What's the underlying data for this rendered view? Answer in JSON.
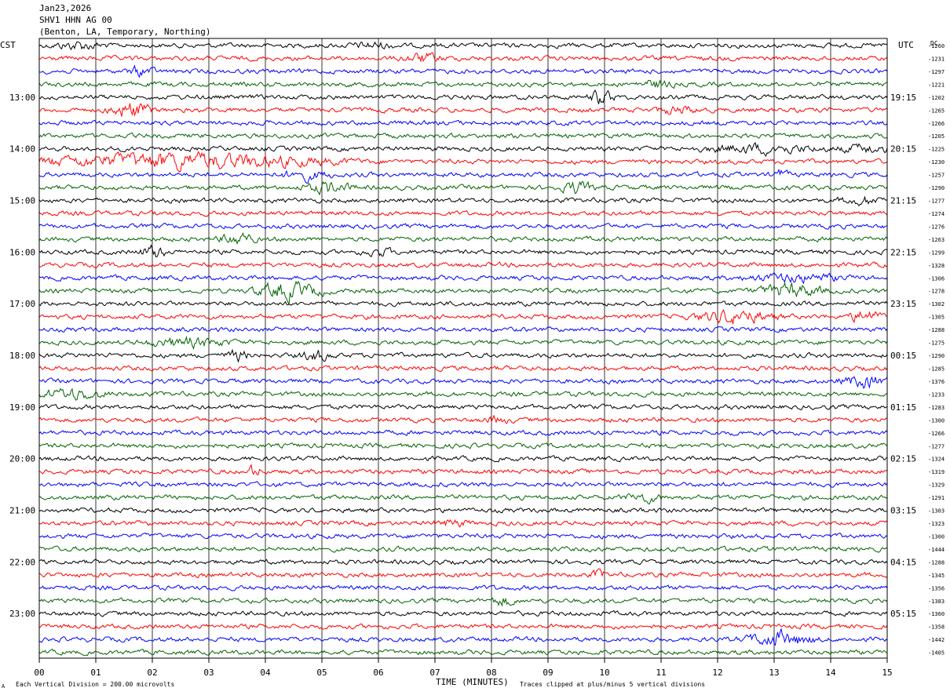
{
  "header": {
    "date": "Jan23,2026",
    "station": "SHV1 HHN AG 00",
    "location": "(Benton, LA, Temporary, Northing)"
  },
  "chart_data": {
    "type": "line",
    "title": "SHV1 HHN AG 00",
    "left_axis_label": "CST",
    "right_axis_label": "UTC",
    "dc_label": "DC",
    "xlabel": "TIME (MINUTES)",
    "x_ticks": [
      "00",
      "01",
      "02",
      "03",
      "04",
      "05",
      "06",
      "07",
      "08",
      "09",
      "10",
      "11",
      "12",
      "13",
      "14",
      "15"
    ],
    "xlim": [
      0,
      15
    ],
    "left_hour_labels": [
      "13:00",
      "14:00",
      "15:00",
      "16:00",
      "17:00",
      "18:00",
      "19:00",
      "20:00",
      "21:00",
      "22:00",
      "23:00"
    ],
    "right_hour_labels": [
      "19:15",
      "20:15",
      "21:15",
      "22:15",
      "23:15",
      "00:15",
      "01:15",
      "02:15",
      "03:15",
      "04:15",
      "05:15"
    ],
    "trace_colors": [
      "#000000",
      "#ff0000",
      "#0000ff",
      "#006400"
    ],
    "dc_offsets": [
      "-1260",
      "-1231",
      "-1297",
      "-1221",
      "-1202",
      "-1265",
      "-1266",
      "-1205",
      "-1225",
      "-1230",
      "-1257",
      "-1290",
      "-1277",
      "-1274",
      "-1276",
      "-1263",
      "-1299",
      "-1328",
      "-1306",
      "-1278",
      "-1302",
      "-1305",
      "-1288",
      "-1275",
      "-1290",
      "-1285",
      "-1376",
      "-1233",
      "-1283",
      "-1300",
      "-1266",
      "-1277",
      "-1324",
      "-1319",
      "-1329",
      "-1291",
      "-1303",
      "-1323",
      "-1300",
      "-1444",
      "-1288",
      "-1345",
      "-1356",
      "-1383",
      "-1360",
      "-1358",
      "-1442",
      "-1405"
    ],
    "events": [
      {
        "row": 0,
        "minute": 0.7,
        "strength": 1.6,
        "width": 0.6
      },
      {
        "row": 0,
        "minute": 5.9,
        "strength": 1.3,
        "width": 0.5
      },
      {
        "row": 1,
        "minute": 6.8,
        "strength": 1.8,
        "width": 0.5
      },
      {
        "row": 2,
        "minute": 1.8,
        "strength": 2.0,
        "width": 0.3
      },
      {
        "row": 3,
        "minute": 10.9,
        "strength": 1.6,
        "width": 0.4
      },
      {
        "row": 4,
        "minute": 9.95,
        "strength": 3.0,
        "width": 0.3
      },
      {
        "row": 5,
        "minute": 1.6,
        "strength": 3.5,
        "width": 0.5
      },
      {
        "row": 5,
        "minute": 11.3,
        "strength": 1.6,
        "width": 0.5
      },
      {
        "row": 8,
        "minute": 12.8,
        "strength": 1.6,
        "width": 1.5
      },
      {
        "row": 8,
        "minute": 14.6,
        "strength": 1.6,
        "width": 0.6
      },
      {
        "row": 9,
        "minute": 2.5,
        "strength": 3.2,
        "width": 3.5
      },
      {
        "row": 10,
        "minute": 4.7,
        "strength": 1.8,
        "width": 0.6
      },
      {
        "row": 10,
        "minute": 13.1,
        "strength": 1.6,
        "width": 0.2
      },
      {
        "row": 11,
        "minute": 5.1,
        "strength": 2.2,
        "width": 0.6
      },
      {
        "row": 11,
        "minute": 9.5,
        "strength": 2.4,
        "width": 0.4
      },
      {
        "row": 12,
        "minute": 14.6,
        "strength": 1.4,
        "width": 0.6
      },
      {
        "row": 15,
        "minute": 3.5,
        "strength": 2.6,
        "width": 0.4
      },
      {
        "row": 16,
        "minute": 2.0,
        "strength": 2.8,
        "width": 0.3
      },
      {
        "row": 16,
        "minute": 6.0,
        "strength": 1.4,
        "width": 0.4
      },
      {
        "row": 18,
        "minute": 13.4,
        "strength": 1.6,
        "width": 1.2
      },
      {
        "row": 19,
        "minute": 4.4,
        "strength": 3.6,
        "width": 0.8
      },
      {
        "row": 19,
        "minute": 13.3,
        "strength": 2.8,
        "width": 0.8
      },
      {
        "row": 21,
        "minute": 12.3,
        "strength": 2.6,
        "width": 1.0
      },
      {
        "row": 21,
        "minute": 14.6,
        "strength": 2.6,
        "width": 0.4
      },
      {
        "row": 23,
        "minute": 2.6,
        "strength": 1.8,
        "width": 1.0
      },
      {
        "row": 24,
        "minute": 3.5,
        "strength": 2.0,
        "width": 0.3
      },
      {
        "row": 24,
        "minute": 4.9,
        "strength": 2.0,
        "width": 0.4
      },
      {
        "row": 26,
        "minute": 14.6,
        "strength": 2.4,
        "width": 0.6
      },
      {
        "row": 27,
        "minute": 0.6,
        "strength": 2.2,
        "width": 0.8
      },
      {
        "row": 29,
        "minute": 8.1,
        "strength": 1.5,
        "width": 0.3
      },
      {
        "row": 33,
        "minute": 3.8,
        "strength": 2.4,
        "width": 0.2
      },
      {
        "row": 35,
        "minute": 10.7,
        "strength": 1.6,
        "width": 0.5
      },
      {
        "row": 37,
        "minute": 7.3,
        "strength": 1.4,
        "width": 0.4
      },
      {
        "row": 41,
        "minute": 9.9,
        "strength": 1.6,
        "width": 0.2
      },
      {
        "row": 43,
        "minute": 8.2,
        "strength": 2.0,
        "width": 0.3
      },
      {
        "row": 46,
        "minute": 13.1,
        "strength": 3.0,
        "width": 0.8
      }
    ]
  },
  "footer": {
    "scale_note": "Each Vertical Division =  200.00 microvolts",
    "clip_note": "Traces clipped at plus/minus 5 vertical divisions"
  }
}
